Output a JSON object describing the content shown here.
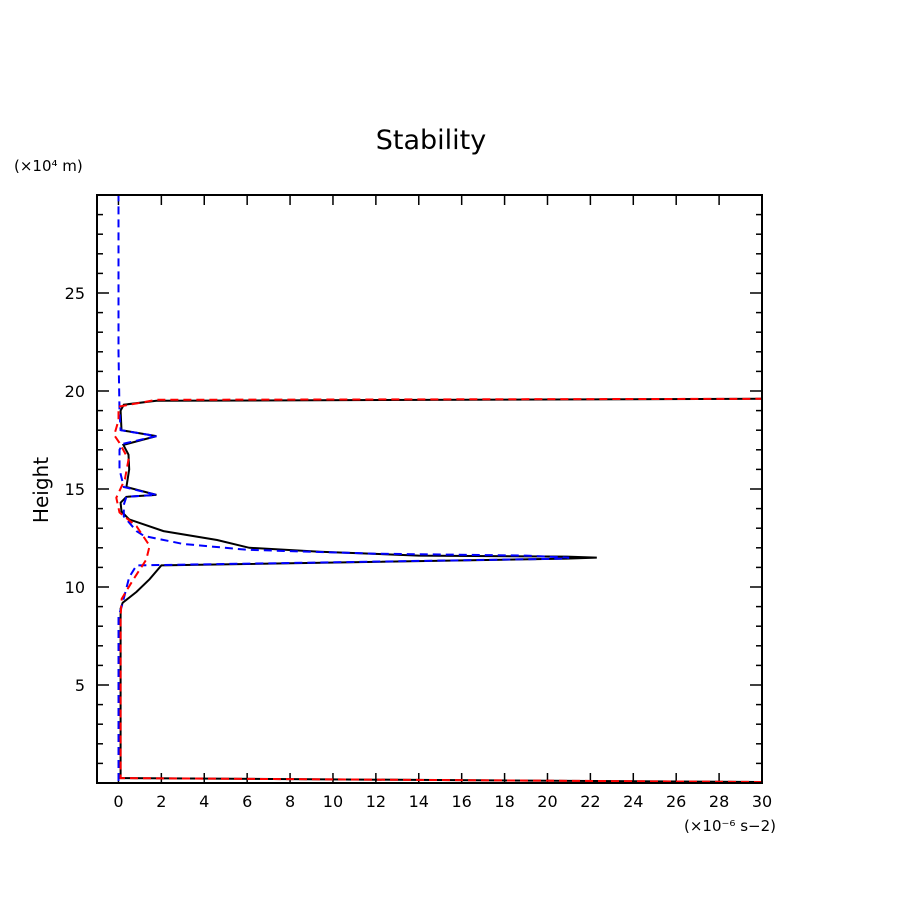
{
  "chart_data": {
    "type": "line",
    "title": "Stability",
    "xlabel": "",
    "x_unit_label": "(×10⁻⁶ s−2)",
    "ylabel": "Height",
    "y_unit_label": "(×10⁴ m)",
    "xlim": [
      -1,
      30
    ],
    "ylim": [
      0,
      30
    ],
    "xticks": [
      0,
      2,
      4,
      6,
      8,
      10,
      12,
      14,
      16,
      18,
      20,
      22,
      24,
      26,
      28,
      30
    ],
    "yticks": [
      5,
      10,
      15,
      20,
      25
    ],
    "grid": false,
    "legend": "none",
    "series": [
      {
        "color": "#000000",
        "style": "solid",
        "points": [
          [
            30,
            0.05
          ],
          [
            0.1,
            0.25
          ],
          [
            0.1,
            5
          ],
          [
            0.1,
            8.9
          ],
          [
            0.2,
            9.2
          ],
          [
            0.84,
            9.75
          ],
          [
            1.45,
            10.4
          ],
          [
            2.0,
            11.1
          ],
          [
            20.9,
            11.45
          ],
          [
            22.3,
            11.5
          ],
          [
            20.9,
            11.55
          ],
          [
            14,
            11.6
          ],
          [
            9.4,
            11.8
          ],
          [
            6.1,
            12.0
          ],
          [
            4.6,
            12.4
          ],
          [
            2.1,
            12.85
          ],
          [
            0.5,
            13.45
          ],
          [
            0.14,
            13.85
          ],
          [
            0.1,
            14.3
          ],
          [
            0.37,
            14.6
          ],
          [
            1.77,
            14.7
          ],
          [
            0.37,
            15.1
          ],
          [
            0.5,
            16.0
          ],
          [
            0.47,
            16.75
          ],
          [
            0.23,
            17.25
          ],
          [
            1.77,
            17.7
          ],
          [
            0.14,
            18.0
          ],
          [
            0.1,
            19.0
          ],
          [
            0.25,
            19.3
          ],
          [
            1.77,
            19.5
          ],
          [
            30,
            19.6
          ]
        ]
      },
      {
        "color": "#0000ff",
        "style": "dashed",
        "points": [
          [
            0,
            0.1
          ],
          [
            0,
            8.5
          ],
          [
            0.15,
            9.0
          ],
          [
            0.5,
            10.5
          ],
          [
            0.84,
            11.1
          ],
          [
            20.9,
            11.45
          ],
          [
            21,
            11.5
          ],
          [
            19,
            11.6
          ],
          [
            12,
            11.7
          ],
          [
            6,
            11.9
          ],
          [
            3,
            12.2
          ],
          [
            1.2,
            12.6
          ],
          [
            0.84,
            12.85
          ],
          [
            0.25,
            13.6
          ],
          [
            0.25,
            14.2
          ],
          [
            0.37,
            14.6
          ],
          [
            1.77,
            14.7
          ],
          [
            0.25,
            15.1
          ],
          [
            0.05,
            16.0
          ],
          [
            0.05,
            17.0
          ],
          [
            0.2,
            17.3
          ],
          [
            1.77,
            17.7
          ],
          [
            0.1,
            18.0
          ],
          [
            0.05,
            19.0
          ],
          [
            0,
            22
          ],
          [
            0,
            30
          ]
        ]
      },
      {
        "color": "#ff0000",
        "style": "dashed",
        "points": [
          [
            30,
            0.05
          ],
          [
            0.1,
            0.25
          ],
          [
            0.1,
            5
          ],
          [
            0.1,
            8.5
          ],
          [
            0.15,
            9.4
          ],
          [
            0.7,
            10.4
          ],
          [
            1.3,
            11.4
          ],
          [
            1.45,
            12.1
          ],
          [
            0.84,
            13.1
          ],
          [
            0.05,
            13.8
          ],
          [
            -0.1,
            14.55
          ],
          [
            0.3,
            15.5
          ],
          [
            0.47,
            16.5
          ],
          [
            0.05,
            17.35
          ],
          [
            -0.2,
            17.75
          ],
          [
            0,
            18.5
          ],
          [
            0,
            19.2
          ],
          [
            1.77,
            19.55
          ],
          [
            30,
            19.6
          ]
        ]
      }
    ]
  }
}
